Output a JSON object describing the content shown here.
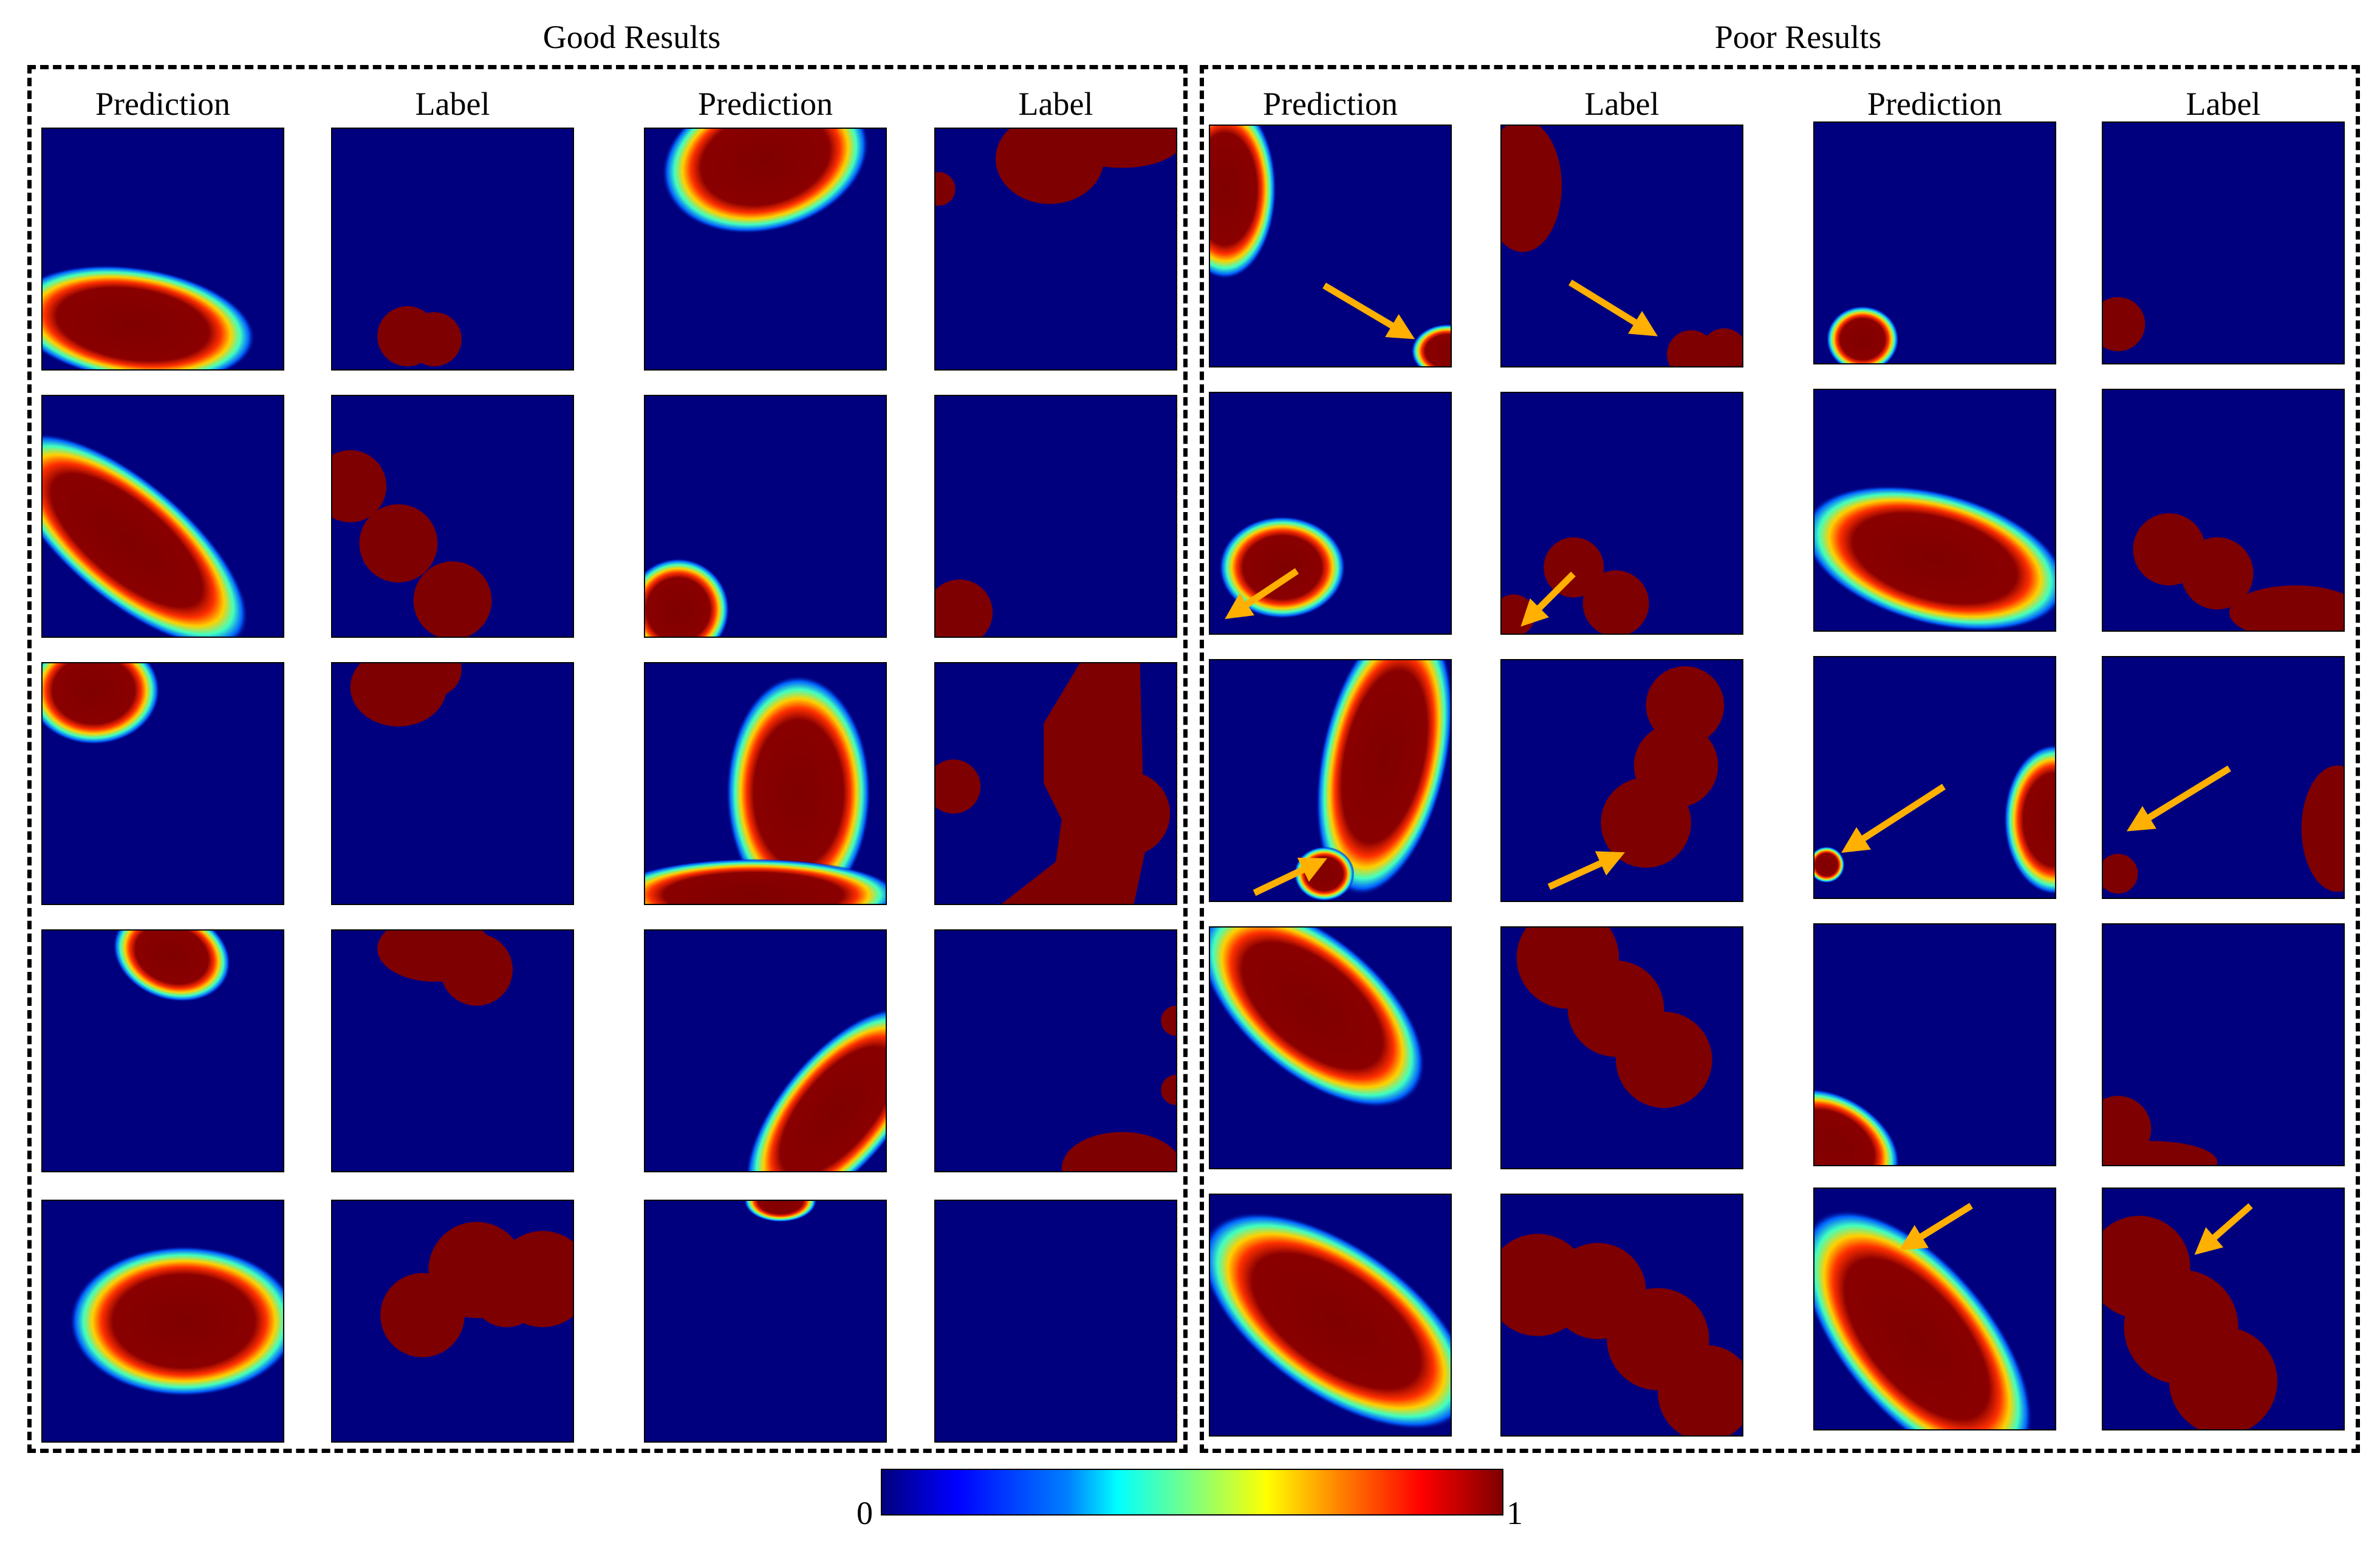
{
  "groups": [
    {
      "title": "Good Results",
      "columns": [
        "Prediction",
        "Label",
        "Prediction",
        "Label"
      ]
    },
    {
      "title": "Poor Results",
      "columns": [
        "Prediction",
        "Label",
        "Prediction",
        "Label"
      ]
    }
  ],
  "colorbar": {
    "min_label": "0",
    "max_label": "1"
  },
  "colors": {
    "background": "#00007f",
    "blob": "#7f0000",
    "arrow": "#ffb000"
  }
}
